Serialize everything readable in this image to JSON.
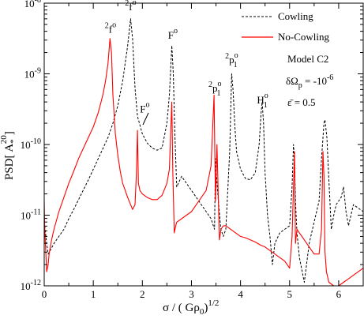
{
  "chart_data": {
    "type": "line",
    "xlabel_main": "σ / ( Gρ",
    "xlabel_sub": "0",
    "xlabel_end": ")",
    "xlabel_sup": "1/2",
    "ylabel_main": "PSD[ A",
    "ylabel_sub": "*",
    "ylabel_sup": "20",
    "ylabel_end": "]",
    "xlim": [
      0,
      6.5
    ],
    "ylim_log10": [
      -12,
      -8
    ],
    "y_scale": "log",
    "x_ticks": [
      0,
      1,
      2,
      3,
      4,
      5,
      6
    ],
    "x_tick_labels": [
      "0",
      "1",
      "2",
      "3",
      "4",
      "5",
      "6"
    ],
    "y_ticks_log10": [
      -12,
      -11,
      -10,
      -9,
      -8
    ],
    "y_tick_labels": [
      {
        "base": "10",
        "exp": "-12"
      },
      {
        "base": "10",
        "exp": "-11"
      },
      {
        "base": "10",
        "exp": "-10"
      },
      {
        "base": "10",
        "exp": "-9"
      },
      {
        "base": "10",
        "exp": "-8"
      }
    ],
    "legend_position": "top-right",
    "series": [
      {
        "name": "Cowling",
        "color": "#000000",
        "dash": "dashed",
        "x": [
          0.0,
          0.02,
          0.05,
          0.08,
          0.12,
          0.2,
          0.3,
          0.4,
          0.5,
          0.6,
          0.7,
          0.8,
          0.9,
          1.0,
          1.1,
          1.2,
          1.3,
          1.4,
          1.5,
          1.6,
          1.7,
          1.76,
          1.8,
          1.85,
          1.9,
          2.0,
          2.1,
          2.2,
          2.3,
          2.4,
          2.5,
          2.55,
          2.6,
          2.63,
          2.66,
          2.7,
          2.8,
          2.9,
          3.0,
          3.1,
          3.2,
          3.3,
          3.4,
          3.47,
          3.49,
          3.52,
          3.55,
          3.58,
          3.6,
          3.65,
          3.7,
          3.78,
          3.82,
          3.85,
          3.88,
          3.92,
          4.0,
          4.1,
          4.2,
          4.3,
          4.38,
          4.42,
          4.44,
          4.47,
          4.5,
          4.55,
          4.6,
          4.65,
          4.7,
          4.8,
          4.9,
          5.0,
          5.05,
          5.08,
          5.1,
          5.12,
          5.15,
          5.2,
          5.3,
          5.4,
          5.5,
          5.6,
          5.65,
          5.7,
          5.72,
          5.76,
          5.8,
          5.85,
          5.9,
          5.95,
          6.0,
          6.05,
          6.1,
          6.15,
          6.2,
          6.3,
          6.4,
          6.5
        ],
        "y_log10": [
          -11.1,
          -11.2,
          -11.4,
          -11.55,
          -11.5,
          -11.4,
          -11.3,
          -11.2,
          -11.05,
          -10.92,
          -10.78,
          -10.64,
          -10.5,
          -10.35,
          -10.2,
          -10.05,
          -9.9,
          -9.7,
          -9.45,
          -9.1,
          -8.6,
          -8.22,
          -8.5,
          -9.2,
          -9.6,
          -9.85,
          -9.98,
          -10.05,
          -10.08,
          -10.05,
          -9.7,
          -9.3,
          -8.6,
          -9.0,
          -9.8,
          -10.6,
          -10.45,
          -10.55,
          -10.65,
          -10.75,
          -10.85,
          -10.95,
          -11.05,
          -11.2,
          -10.2,
          -10.55,
          -10.8,
          -11.05,
          -11.2,
          -11.3,
          -11.2,
          -10.1,
          -9.0,
          -9.25,
          -9.7,
          -10.1,
          -10.35,
          -10.48,
          -10.5,
          -10.4,
          -10.0,
          -9.55,
          -9.4,
          -9.7,
          -10.4,
          -11.0,
          -11.3,
          -11.7,
          -11.4,
          -11.25,
          -11.2,
          -11.15,
          -10.6,
          -10.0,
          -10.25,
          -10.8,
          -11.25,
          -11.6,
          -11.95,
          -11.4,
          -11.1,
          -10.8,
          -10.2,
          -9.7,
          -9.65,
          -9.9,
          -10.5,
          -11.2,
          -11.0,
          -10.85,
          -10.8,
          -10.75,
          -10.6,
          -10.95,
          -11.15,
          -10.85,
          -10.9,
          -10.95
        ]
      },
      {
        "name": "No-Cowling",
        "color": "#ff0000",
        "dash": "solid",
        "x": [
          0.0,
          0.01,
          0.03,
          0.05,
          0.08,
          0.1,
          0.15,
          0.2,
          0.3,
          0.4,
          0.5,
          0.6,
          0.7,
          0.8,
          0.9,
          1.0,
          1.05,
          1.1,
          1.15,
          1.2,
          1.25,
          1.3,
          1.34,
          1.37,
          1.4,
          1.45,
          1.5,
          1.55,
          1.6,
          1.7,
          1.8,
          1.85,
          1.88,
          1.9,
          1.92,
          1.95,
          2.0,
          2.1,
          2.2,
          2.3,
          2.4,
          2.5,
          2.55,
          2.6,
          2.62,
          2.65,
          2.68,
          2.7,
          2.8,
          2.9,
          3.0,
          3.1,
          3.2,
          3.3,
          3.4,
          3.46,
          3.49,
          3.52,
          3.55,
          3.57,
          3.6,
          3.65,
          3.7,
          3.8,
          3.9,
          4.0,
          4.1,
          4.2,
          4.3,
          4.4,
          4.5,
          4.6,
          4.7,
          4.8,
          4.9,
          5.0,
          5.05,
          5.1,
          5.12,
          5.15,
          5.2,
          5.3,
          5.4,
          5.5,
          5.6,
          5.65,
          5.68,
          5.7,
          5.72,
          5.75,
          5.8,
          5.9,
          6.0,
          6.1,
          6.2,
          6.3,
          6.4,
          6.5
        ],
        "y_log10": [
          -10.8,
          -11.2,
          -11.5,
          -11.8,
          -11.7,
          -11.55,
          -11.35,
          -11.2,
          -10.95,
          -10.75,
          -10.55,
          -10.38,
          -10.2,
          -10.05,
          -9.9,
          -9.75,
          -9.65,
          -9.55,
          -9.42,
          -9.28,
          -9.1,
          -8.85,
          -8.5,
          -8.7,
          -9.3,
          -9.85,
          -10.15,
          -10.38,
          -10.55,
          -10.75,
          -10.92,
          -10.85,
          -10.4,
          -9.8,
          -10.55,
          -10.65,
          -10.7,
          -10.75,
          -10.78,
          -10.78,
          -10.72,
          -10.55,
          -10.35,
          -9.4,
          -10.35,
          -11.25,
          -11.15,
          -11.1,
          -11.05,
          -11.0,
          -10.95,
          -10.85,
          -10.75,
          -10.65,
          -10.3,
          -9.3,
          -10.8,
          -10.0,
          -10.8,
          -11.35,
          -11.2,
          -11.15,
          -11.15,
          -11.2,
          -11.25,
          -11.3,
          -11.32,
          -11.35,
          -11.38,
          -11.42,
          -11.45,
          -11.5,
          -11.55,
          -11.6,
          -11.65,
          -11.75,
          -11.3,
          -10.1,
          -11.4,
          -11.2,
          -11.25,
          -11.35,
          -11.45,
          -11.55,
          -11.55,
          -11.2,
          -10.1,
          -10.45,
          -11.5,
          -11.8,
          -11.95,
          -12.0,
          -12.0,
          -11.95,
          -11.9,
          -11.85,
          -11.8,
          -11.75
        ]
      }
    ],
    "annotations": [
      {
        "text": "f",
        "pre_sup": "2",
        "post_sup": "o",
        "x": 1.76,
        "y_log10": -8.1
      },
      {
        "text": "f",
        "pre_sup": "2",
        "post_sup": "o",
        "x": 1.35,
        "y_log10": -8.42
      },
      {
        "text": "F",
        "pre_sup": "",
        "post_sup": "o",
        "x": 2.62,
        "y_log10": -8.5
      },
      {
        "text": "F",
        "pre_sup": "",
        "post_sup": "o",
        "x": 2.05,
        "y_log10": -9.55
      },
      {
        "text": "p",
        "pre_sup": "2",
        "post_sup": "o",
        "post_sub": "1",
        "x": 3.82,
        "y_log10": -8.85
      },
      {
        "text": "p",
        "pre_sup": "2",
        "post_sup": "o",
        "post_sub": "1",
        "x": 3.48,
        "y_log10": -9.25
      },
      {
        "text": "H",
        "pre_sup": "",
        "post_sup": "o",
        "post_sub": "1",
        "x": 4.45,
        "y_log10": -9.42
      }
    ],
    "model_text": "Model C2",
    "param1_main": "δΩ",
    "param1_sub": "p",
    "param1_rest": " = -10",
    "param1_sup": "-6",
    "param2": "ε̄ = 0.5"
  }
}
